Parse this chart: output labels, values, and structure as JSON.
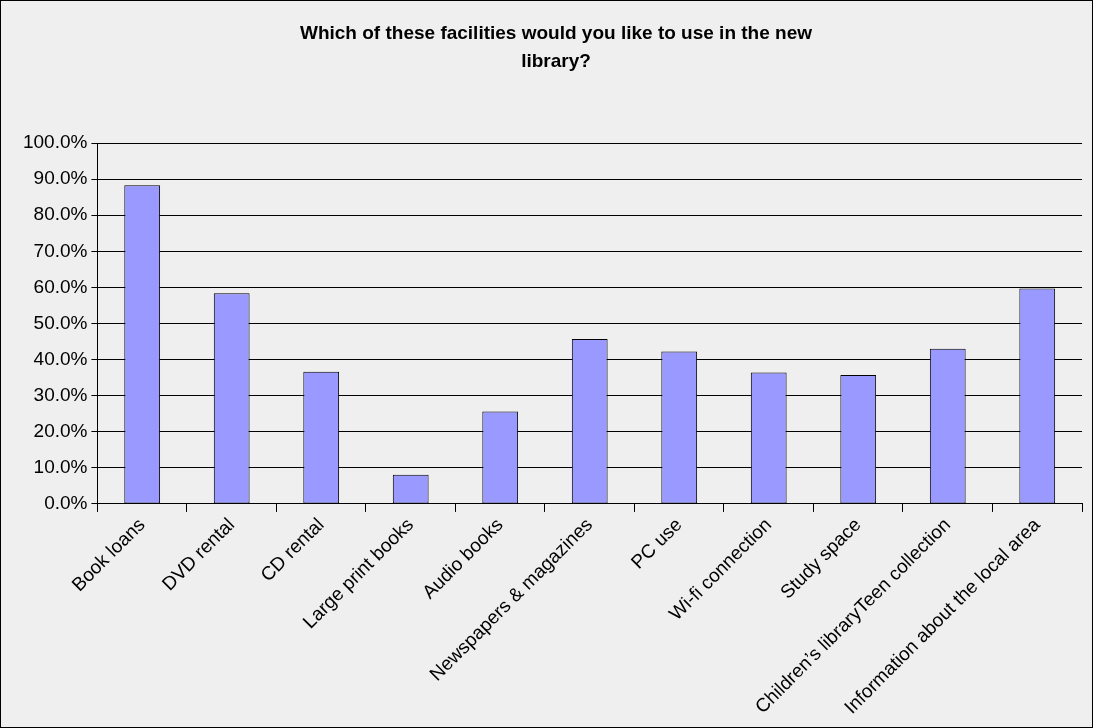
{
  "chart_data": {
    "type": "bar",
    "title": "Which of these facilities would you like to use in the new library?",
    "categories": [
      "Book loans",
      "DVD rental",
      "CD rental",
      "Large print books",
      "Audio books",
      "Newspapers & magazines",
      "PC use",
      "Wi-fi connection",
      "Study space",
      "Children’s libraryTeen collection",
      "Information about the local area"
    ],
    "values": [
      88.3,
      58.4,
      36.6,
      8.1,
      25.6,
      45.7,
      42.2,
      36.4,
      35.7,
      43.0,
      59.7
    ],
    "color": "#9999ff",
    "ylim": [
      0,
      100
    ],
    "yticks": [
      {
        "value": 0,
        "label": "0.0%"
      },
      {
        "value": 10,
        "label": "10.0%"
      },
      {
        "value": 20,
        "label": "20.0%"
      },
      {
        "value": 30,
        "label": "30.0%"
      },
      {
        "value": 40,
        "label": "40.0%"
      },
      {
        "value": 50,
        "label": "50.0%"
      },
      {
        "value": 60,
        "label": "60.0%"
      },
      {
        "value": 70,
        "label": "70.0%"
      },
      {
        "value": 80,
        "label": "80.0%"
      },
      {
        "value": 90,
        "label": "90.0%"
      },
      {
        "value": 100,
        "label": "100.0%"
      }
    ],
    "grid": "y"
  }
}
